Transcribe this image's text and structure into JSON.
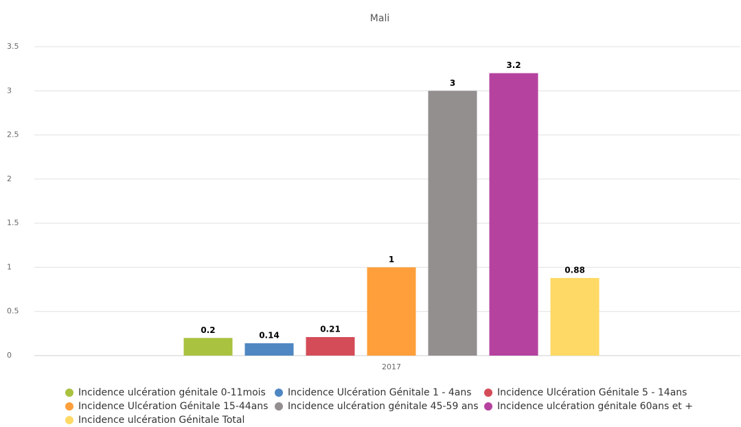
{
  "chart_data": {
    "type": "bar",
    "subtitle": "Mali",
    "categories": [
      "2017"
    ],
    "series": [
      {
        "name": "Incidence ulcération génitale 0-11mois",
        "color": "#a9c23f",
        "values": [
          0.2
        ]
      },
      {
        "name": "Incidence Ulcération Génitale 1 - 4ans",
        "color": "#4f87c2",
        "values": [
          0.14
        ]
      },
      {
        "name": "Incidence Ulcération Génitale 5 - 14ans",
        "color": "#d44c58",
        "values": [
          0.21
        ]
      },
      {
        "name": "Incidence Ulcération Génitale 15-44ans",
        "color": "#fe9f3b",
        "values": [
          1
        ]
      },
      {
        "name": "Incidence ulcération génitale 45-59 ans",
        "color": "#948f8f",
        "values": [
          3
        ]
      },
      {
        "name": "Incidence ulcération génitale 60ans et +",
        "color": "#b5429f",
        "values": [
          3.2
        ]
      },
      {
        "name": "Incidence ulcération Génitale Total",
        "color": "#fed966",
        "values": [
          0.88
        ]
      }
    ],
    "ylim": [
      0,
      3.5
    ],
    "yticks": [
      0,
      0.5,
      1,
      1.5,
      2,
      2.5,
      3,
      3.5
    ],
    "grid": true,
    "legend": "bottom"
  }
}
